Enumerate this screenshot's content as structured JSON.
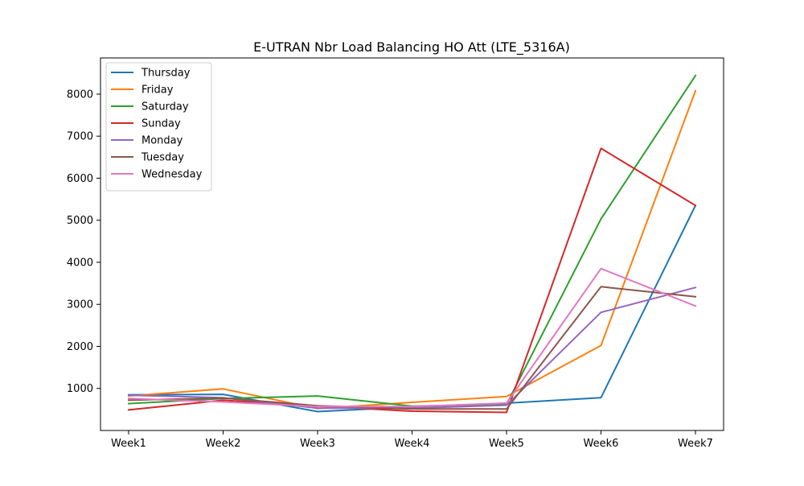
{
  "chart_data": {
    "type": "line",
    "title": "E-UTRAN Nbr Load Balancing HO Att (LTE_5316A)",
    "xlabel": "",
    "ylabel": "",
    "categories": [
      "Week1",
      "Week2",
      "Week3",
      "Week4",
      "Week5",
      "Week6",
      "Week7"
    ],
    "y_ticks": [
      1000,
      2000,
      3000,
      4000,
      5000,
      6000,
      7000,
      8000
    ],
    "ylim": [
      0,
      8860
    ],
    "grid": false,
    "legend_position": "top-left",
    "series": [
      {
        "name": "Thursday",
        "color": "#1f77b4",
        "values": [
          850,
          860,
          450,
          560,
          650,
          780,
          5350
        ]
      },
      {
        "name": "Friday",
        "color": "#ff7f0e",
        "values": [
          820,
          990,
          520,
          670,
          810,
          2020,
          8080
        ]
      },
      {
        "name": "Saturday",
        "color": "#2ca02c",
        "values": [
          640,
          760,
          820,
          580,
          620,
          5030,
          8440
        ]
      },
      {
        "name": "Sunday",
        "color": "#d62728",
        "values": [
          490,
          720,
          580,
          460,
          430,
          6710,
          5350
        ]
      },
      {
        "name": "Monday",
        "color": "#9467bd",
        "values": [
          840,
          780,
          530,
          530,
          600,
          2810,
          3400
        ]
      },
      {
        "name": "Tuesday",
        "color": "#8c564b",
        "values": [
          720,
          770,
          590,
          510,
          510,
          3420,
          3180
        ]
      },
      {
        "name": "Wednesday",
        "color": "#e377c2",
        "values": [
          760,
          680,
          570,
          570,
          650,
          3850,
          2960
        ]
      }
    ]
  }
}
